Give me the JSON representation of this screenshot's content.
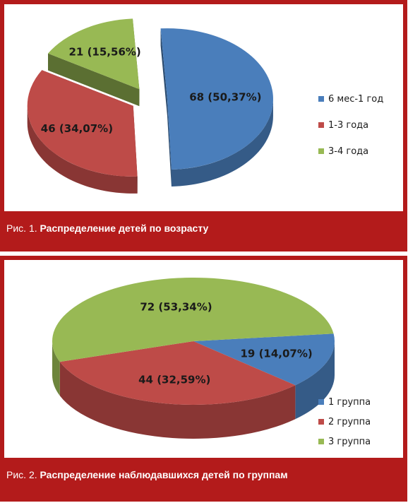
{
  "chart_data": [
    {
      "type": "pie",
      "categories": [
        "6 мес-1 год",
        "1-3 года",
        "3-4 года"
      ],
      "values": [
        68,
        46,
        21
      ],
      "labels": [
        "68 (50,37%)",
        "46 (34,07%)",
        "21 (15,56%)"
      ],
      "colors": [
        "#4a7ebb",
        "#be4b48",
        "#98b954"
      ],
      "legend": "right",
      "caption_prefix": "Рис. 1.",
      "caption_text": "Распределение детей по возрасту"
    },
    {
      "type": "pie",
      "categories": [
        "1 группа",
        "2 группа",
        "3 группа"
      ],
      "values": [
        19,
        44,
        72
      ],
      "labels": [
        "19 (14,07%)",
        "44 (32,59%)",
        "72 (53,34%)"
      ],
      "colors": [
        "#4a7ebb",
        "#be4b48",
        "#98b954"
      ],
      "legend": "bottom-right",
      "caption_prefix": "Рис. 2.",
      "caption_text": "Распределение наблюдавшихся детей по группам"
    }
  ]
}
